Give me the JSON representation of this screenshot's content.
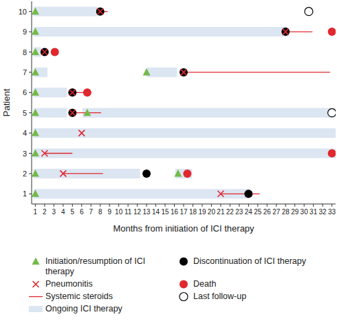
{
  "chart_data": {
    "type": "swimmer",
    "x_label": "Months from initiation of ICI therapy",
    "y_label": "Patient",
    "categories": [
      1,
      2,
      3,
      4,
      5,
      6,
      7,
      8,
      9,
      10
    ],
    "ylim": [
      0.5,
      10.5
    ],
    "xlim": [
      0.6,
      33.4
    ],
    "xticks": [
      1,
      2,
      3,
      4,
      5,
      6,
      7,
      8,
      9,
      10,
      11,
      12,
      13,
      14,
      15,
      16,
      17,
      18,
      19,
      20,
      21,
      22,
      23,
      24,
      25,
      26,
      27,
      28,
      29,
      30,
      31,
      32,
      33
    ],
    "series": [
      {
        "name": "Initiation/resumption of ICI therapy",
        "type": "marker",
        "marker": "triangle",
        "color": "#74b94a",
        "values": [
          [
            1
          ],
          [
            1,
            16.4
          ],
          [
            1
          ],
          [
            1
          ],
          [
            1,
            6.6
          ],
          [
            1
          ],
          [
            1,
            13
          ],
          [
            1
          ],
          [
            1
          ],
          [
            1
          ]
        ]
      },
      {
        "name": "Pneumonitis",
        "type": "marker",
        "marker": "x",
        "color": "#e0282e",
        "values": [
          [
            21
          ],
          [
            4
          ],
          [
            2
          ],
          [
            6
          ],
          [
            5
          ],
          [
            5
          ],
          [
            17
          ],
          [
            2
          ],
          [
            28
          ],
          [
            8
          ]
        ]
      },
      {
        "name": "Systemic steroids",
        "type": "range",
        "line_style": "solid",
        "color": "#e0282e",
        "values": [
          [
            [
              21,
              25.2
            ]
          ],
          [
            [
              4,
              8.3
            ]
          ],
          [
            [
              2,
              5
            ]
          ],
          [],
          [
            [
              5,
              8.1
            ]
          ],
          [
            [
              5,
              6.5
            ]
          ],
          [
            [
              17,
              32.8
            ]
          ],
          [],
          [
            [
              28,
              30.9
            ]
          ],
          [
            [
              8,
              8.8
            ]
          ]
        ]
      },
      {
        "name": "Ongoing ICI therapy",
        "type": "bar",
        "color": "#dce6f2",
        "values": [
          [
            [
              0.8,
              24
            ]
          ],
          [
            [
              0.8,
              12.3
            ],
            [
              16.1,
              17.9
            ]
          ],
          [
            [
              0.8,
              33.4
            ]
          ],
          [
            [
              0.8,
              33.4
            ]
          ],
          [
            [
              0.8,
              4.4
            ],
            [
              6.1,
              33.4
            ]
          ],
          [
            [
              0.8,
              4.4
            ]
          ],
          [
            [
              0.8,
              2.3
            ],
            [
              13,
              16.3
            ]
          ],
          [
            [
              0.8,
              1.6
            ]
          ],
          [
            [
              0.8,
              28.2
            ]
          ],
          [
            [
              0.8,
              7.7
            ]
          ]
        ]
      },
      {
        "name": "Discontinuation of ICI therapy",
        "type": "marker",
        "marker": "circle",
        "color": "#000000",
        "values": [
          [
            24
          ],
          [
            13
          ],
          [],
          [],
          [
            5
          ],
          [
            5
          ],
          [
            17
          ],
          [
            2
          ],
          [
            28
          ],
          [
            8
          ]
        ]
      },
      {
        "name": "Death",
        "type": "marker",
        "marker": "circle",
        "color": "#e0282e",
        "values": [
          [],
          [
            17.4
          ],
          [
            33
          ],
          [],
          [],
          [
            6.6
          ],
          [],
          [
            3.1
          ],
          [
            33
          ],
          []
        ]
      },
      {
        "name": "Last follow-up",
        "type": "marker",
        "marker": "open_circle",
        "color": "#000000",
        "values": [
          [],
          [],
          [],
          [],
          [
            33
          ],
          [],
          [],
          [],
          [],
          [
            30.5
          ]
        ]
      }
    ]
  }
}
